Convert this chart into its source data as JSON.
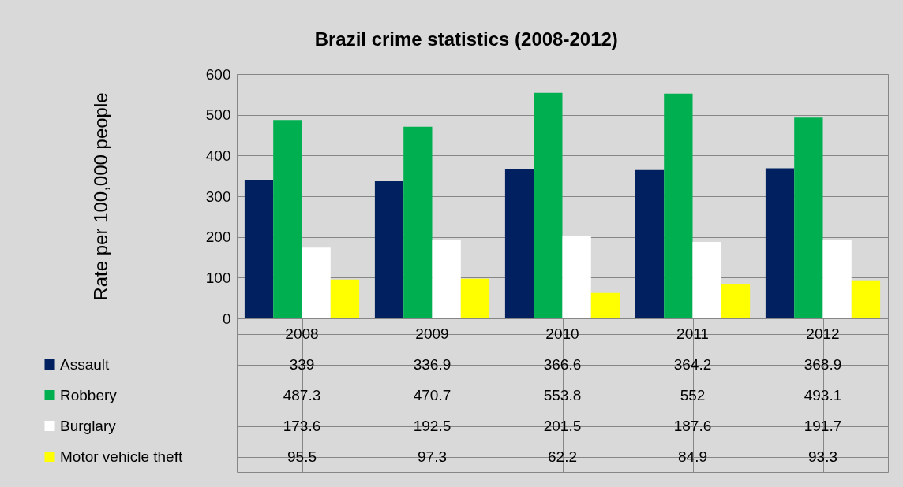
{
  "chart_data": {
    "type": "bar",
    "title": "Brazil crime statistics (2008-2012)",
    "ylabel": "Rate per 100,000 people",
    "categories": [
      "2008",
      "2009",
      "2010",
      "2011",
      "2012"
    ],
    "series": [
      {
        "name": "Assault",
        "color": "#002060",
        "values": [
          339,
          336.9,
          366.6,
          364.2,
          368.9
        ]
      },
      {
        "name": "Robbery",
        "color": "#00b050",
        "values": [
          487.3,
          470.7,
          553.8,
          552,
          493.1
        ]
      },
      {
        "name": "Burglary",
        "color": "#ffffff",
        "values": [
          173.6,
          192.5,
          201.5,
          187.6,
          191.7
        ]
      },
      {
        "name": "Motor vehicle theft",
        "color": "#ffff00",
        "values": [
          95.5,
          97.3,
          62.2,
          84.9,
          93.3
        ]
      }
    ],
    "ylim": [
      0,
      600
    ],
    "yticks": [
      0,
      100,
      200,
      300,
      400,
      500,
      600
    ],
    "grid": "y",
    "legend": "left",
    "data_labels": true
  }
}
